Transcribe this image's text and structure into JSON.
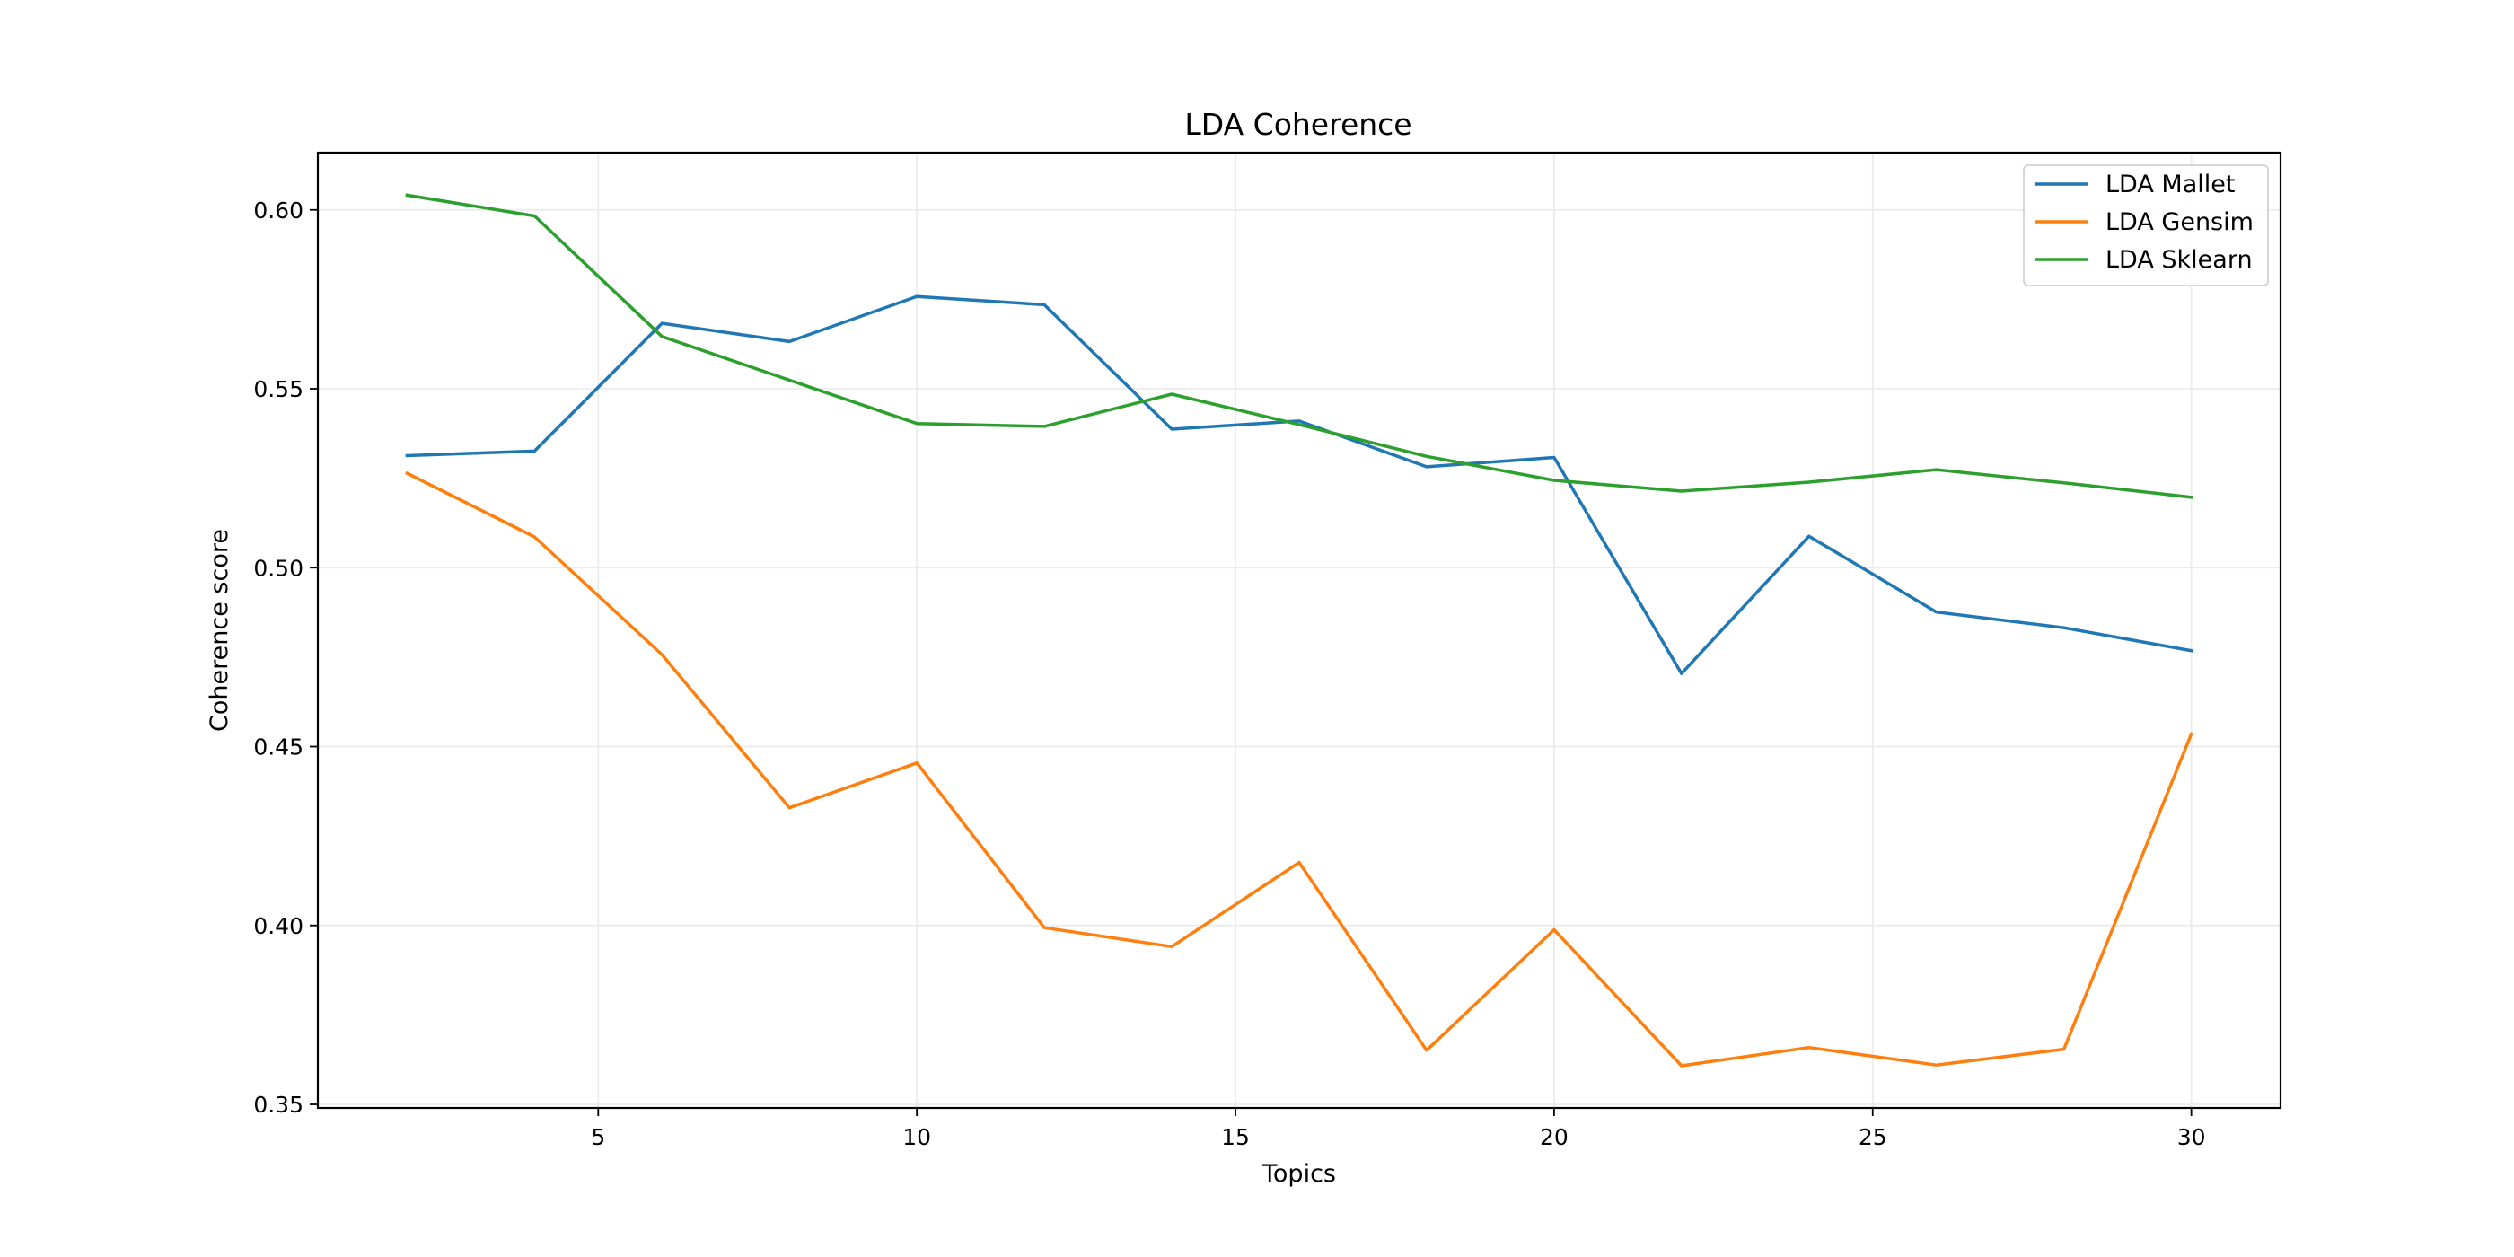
{
  "chart_data": {
    "type": "line",
    "title": "LDA Coherence",
    "xlabel": "Topics",
    "ylabel": "Coherence score",
    "x": [
      2,
      4,
      6,
      8,
      10,
      12,
      14,
      16,
      18,
      20,
      22,
      24,
      26,
      28,
      30
    ],
    "xlim": [
      0.6,
      31.4
    ],
    "ylim": [
      0.349,
      0.616
    ],
    "xticks": [
      5,
      10,
      15,
      20,
      25,
      30
    ],
    "yticks": [
      0.35,
      0.4,
      0.45,
      0.5,
      0.55,
      0.6
    ],
    "xtick_labels": [
      "5",
      "10",
      "15",
      "20",
      "25",
      "30"
    ],
    "ytick_labels": [
      "0.35",
      "0.40",
      "0.45",
      "0.50",
      "0.55",
      "0.60"
    ],
    "grid": true,
    "legend_position": "top-right",
    "series": [
      {
        "name": "LDA Mallet",
        "color": "#1f77b4",
        "values": [
          0.5313,
          0.5326,
          0.5683,
          0.5632,
          0.5758,
          0.5735,
          0.5387,
          0.541,
          0.5282,
          0.5308,
          0.4704,
          0.5088,
          0.4876,
          0.4832,
          0.4768
        ]
      },
      {
        "name": "LDA Gensim",
        "color": "#ff7f0e",
        "values": [
          0.5264,
          0.5086,
          0.4757,
          0.4329,
          0.4454,
          0.3994,
          0.3941,
          0.4176,
          0.3651,
          0.3988,
          0.3608,
          0.3659,
          0.361,
          0.3654,
          0.4535
        ]
      },
      {
        "name": "LDA Sklearn",
        "color": "#2ca02c",
        "values": [
          0.6041,
          0.5983,
          0.5646,
          0.5524,
          0.5403,
          0.5395,
          0.5485,
          0.54,
          0.5311,
          0.5244,
          0.5214,
          0.5239,
          0.5274,
          0.5237,
          0.5197
        ]
      }
    ]
  }
}
